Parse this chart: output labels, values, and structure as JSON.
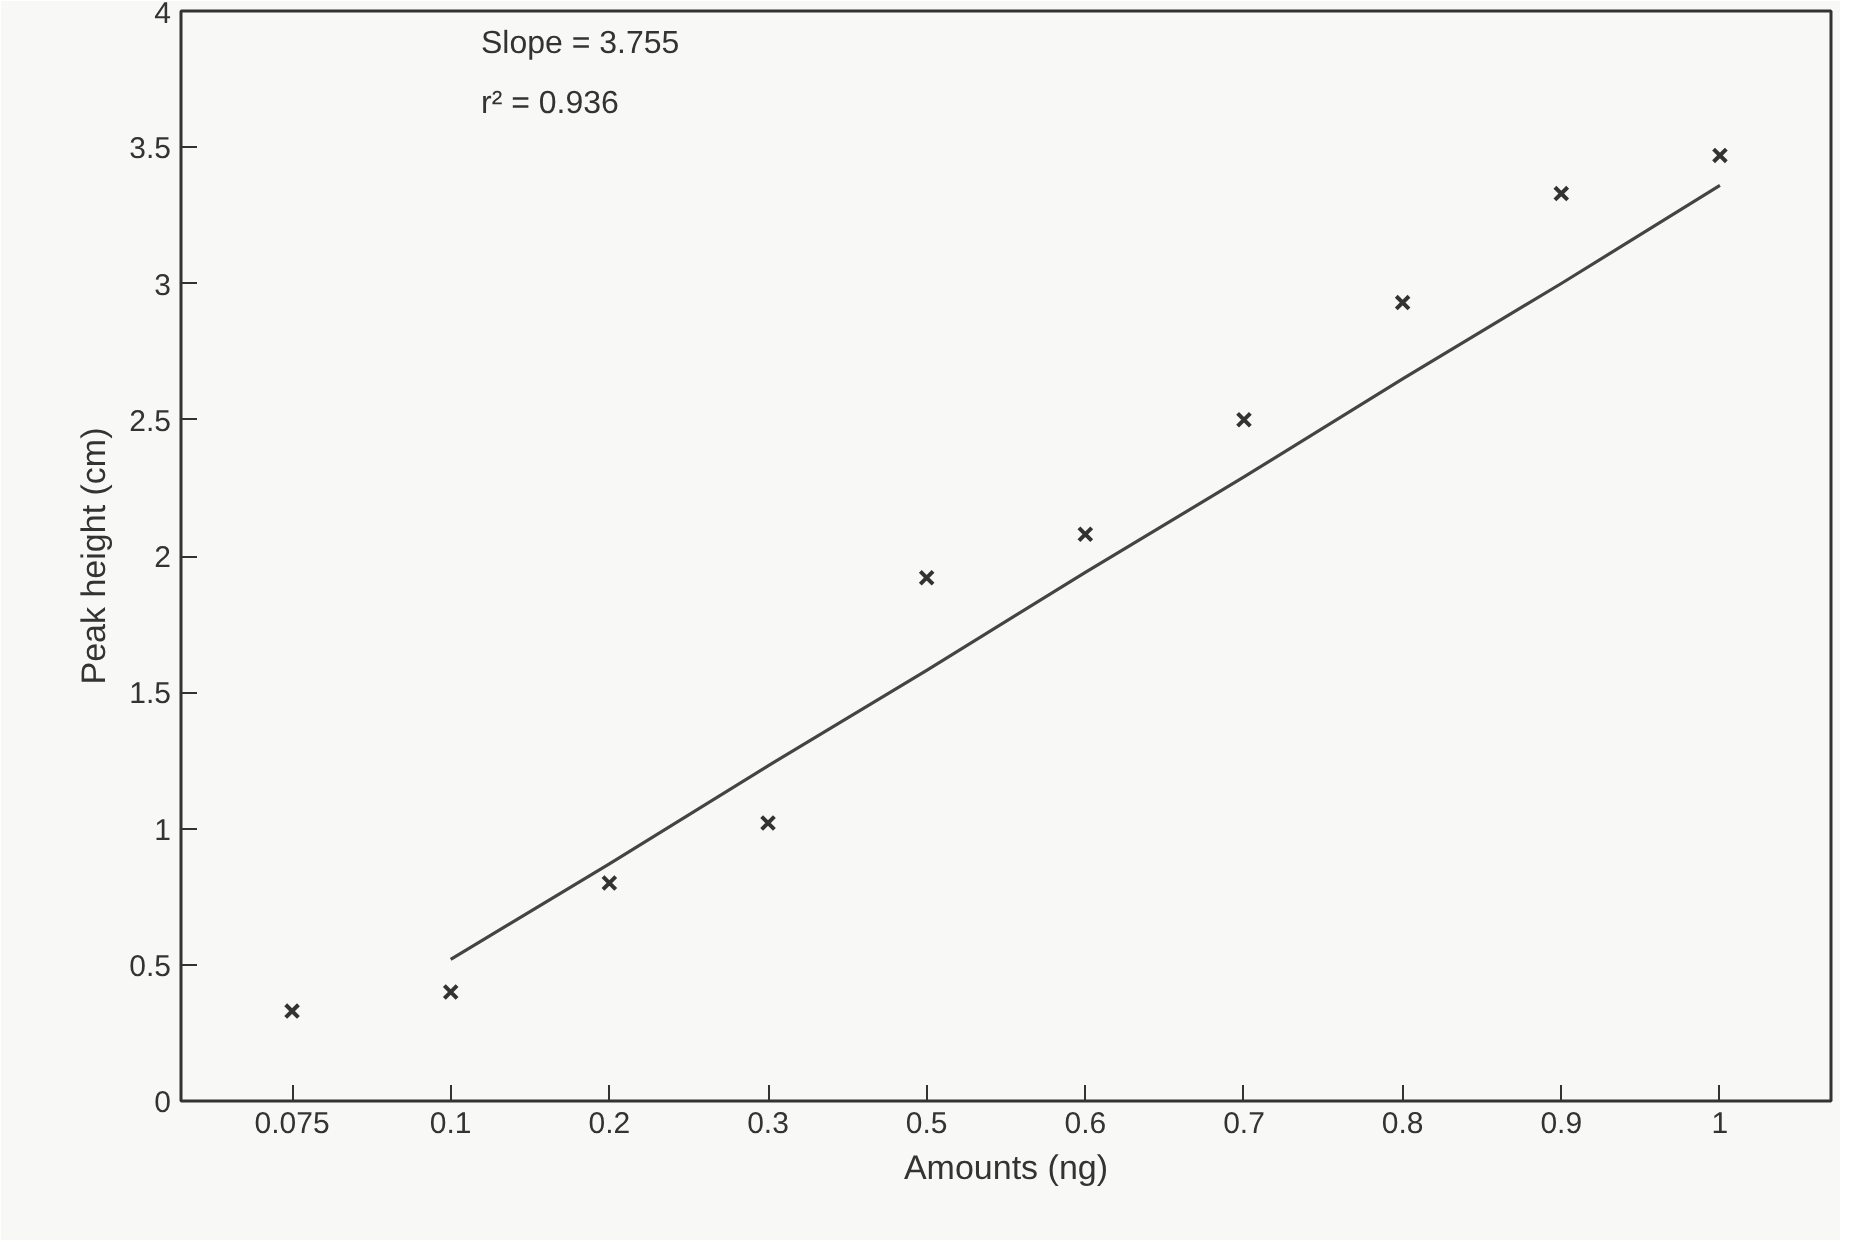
{
  "chart_data": {
    "type": "scatter",
    "xlabel": "Amounts (ng)",
    "ylabel": "Peak height (cm)",
    "categories": [
      "0.075",
      "0.1",
      "0.2",
      "0.3",
      "0.5",
      "0.6",
      "0.7",
      "0.8",
      "0.9",
      "1"
    ],
    "series": [
      {
        "color": "#333333",
        "marker": "cross",
        "values": [
          0.33,
          0.4,
          0.8,
          1.02,
          1.92,
          2.08,
          2.5,
          2.93,
          3.33,
          3.47
        ]
      },
      {
        "type": "line",
        "color": "#444444",
        "line_style": "solid",
        "values": [
          null,
          0.52,
          0.87,
          1.23,
          1.58,
          1.94,
          2.29,
          2.65,
          3.0,
          3.36
        ]
      }
    ],
    "ylim": [
      0,
      4
    ],
    "yticks": [
      0,
      0.5,
      1,
      1.5,
      2,
      2.5,
      3,
      3.5,
      4
    ],
    "annotations": [
      "Slope = 3.755",
      "r² = 0.936"
    ],
    "grid": false
  }
}
